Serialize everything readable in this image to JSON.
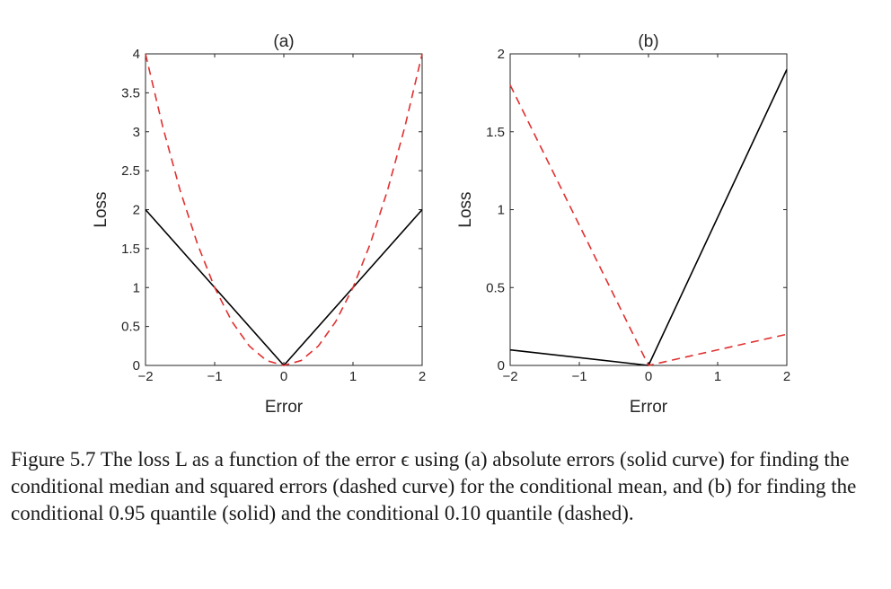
{
  "chart_data": [
    {
      "type": "line",
      "title": "(a)",
      "xlabel": "Error",
      "ylabel": "Loss",
      "xlim": [
        -2,
        2
      ],
      "ylim": [
        0,
        4
      ],
      "x_ticks": [
        -2,
        -1,
        0,
        1,
        2
      ],
      "x_tick_labels": [
        "−2",
        "−1",
        "0",
        "1",
        "2"
      ],
      "y_ticks": [
        0,
        0.5,
        1,
        1.5,
        2,
        2.5,
        3,
        3.5,
        4
      ],
      "y_tick_labels": [
        "0",
        "0.5",
        "1",
        "1.5",
        "2",
        "2.5",
        "3",
        "3.5",
        "4"
      ],
      "grid": false,
      "series": [
        {
          "style": "solid",
          "color": "#000000",
          "x": [
            -2,
            -1,
            0,
            1,
            2
          ],
          "y": [
            2,
            1,
            0,
            1,
            2
          ]
        },
        {
          "style": "dashed",
          "color": "#e03030",
          "x": [
            -2,
            -1.75,
            -1.5,
            -1.25,
            -1,
            -0.75,
            -0.5,
            -0.25,
            0,
            0.25,
            0.5,
            0.75,
            1,
            1.25,
            1.5,
            1.75,
            2
          ],
          "y": [
            4,
            3.0625,
            2.25,
            1.5625,
            1,
            0.5625,
            0.25,
            0.0625,
            0,
            0.0625,
            0.25,
            0.5625,
            1,
            1.5625,
            2.25,
            3.0625,
            4
          ]
        }
      ]
    },
    {
      "type": "line",
      "title": "(b)",
      "xlabel": "Error",
      "ylabel": "Loss",
      "xlim": [
        -2,
        2
      ],
      "ylim": [
        0,
        2
      ],
      "x_ticks": [
        -2,
        -1,
        0,
        1,
        2
      ],
      "x_tick_labels": [
        "−2",
        "−1",
        "0",
        "1",
        "2"
      ],
      "y_ticks": [
        0,
        0.5,
        1,
        1.5,
        2
      ],
      "y_tick_labels": [
        "0",
        "0.5",
        "1",
        "1.5",
        "2"
      ],
      "grid": false,
      "series": [
        {
          "style": "solid",
          "color": "#000000",
          "x": [
            -2,
            0,
            2
          ],
          "y": [
            0.1,
            0,
            1.9
          ]
        },
        {
          "style": "dashed",
          "color": "#e03030",
          "x": [
            -2,
            0,
            2
          ],
          "y": [
            1.8,
            0,
            0.2
          ]
        }
      ]
    }
  ],
  "caption": "Figure 5.7 The loss L as a function of the error ϵ using (a) absolute errors (solid curve) for finding the conditional median and squared errors (dashed curve) for the conditional mean, and (b) for finding the conditional 0.95 quantile (solid) and the conditional 0.10 quantile (dashed)."
}
